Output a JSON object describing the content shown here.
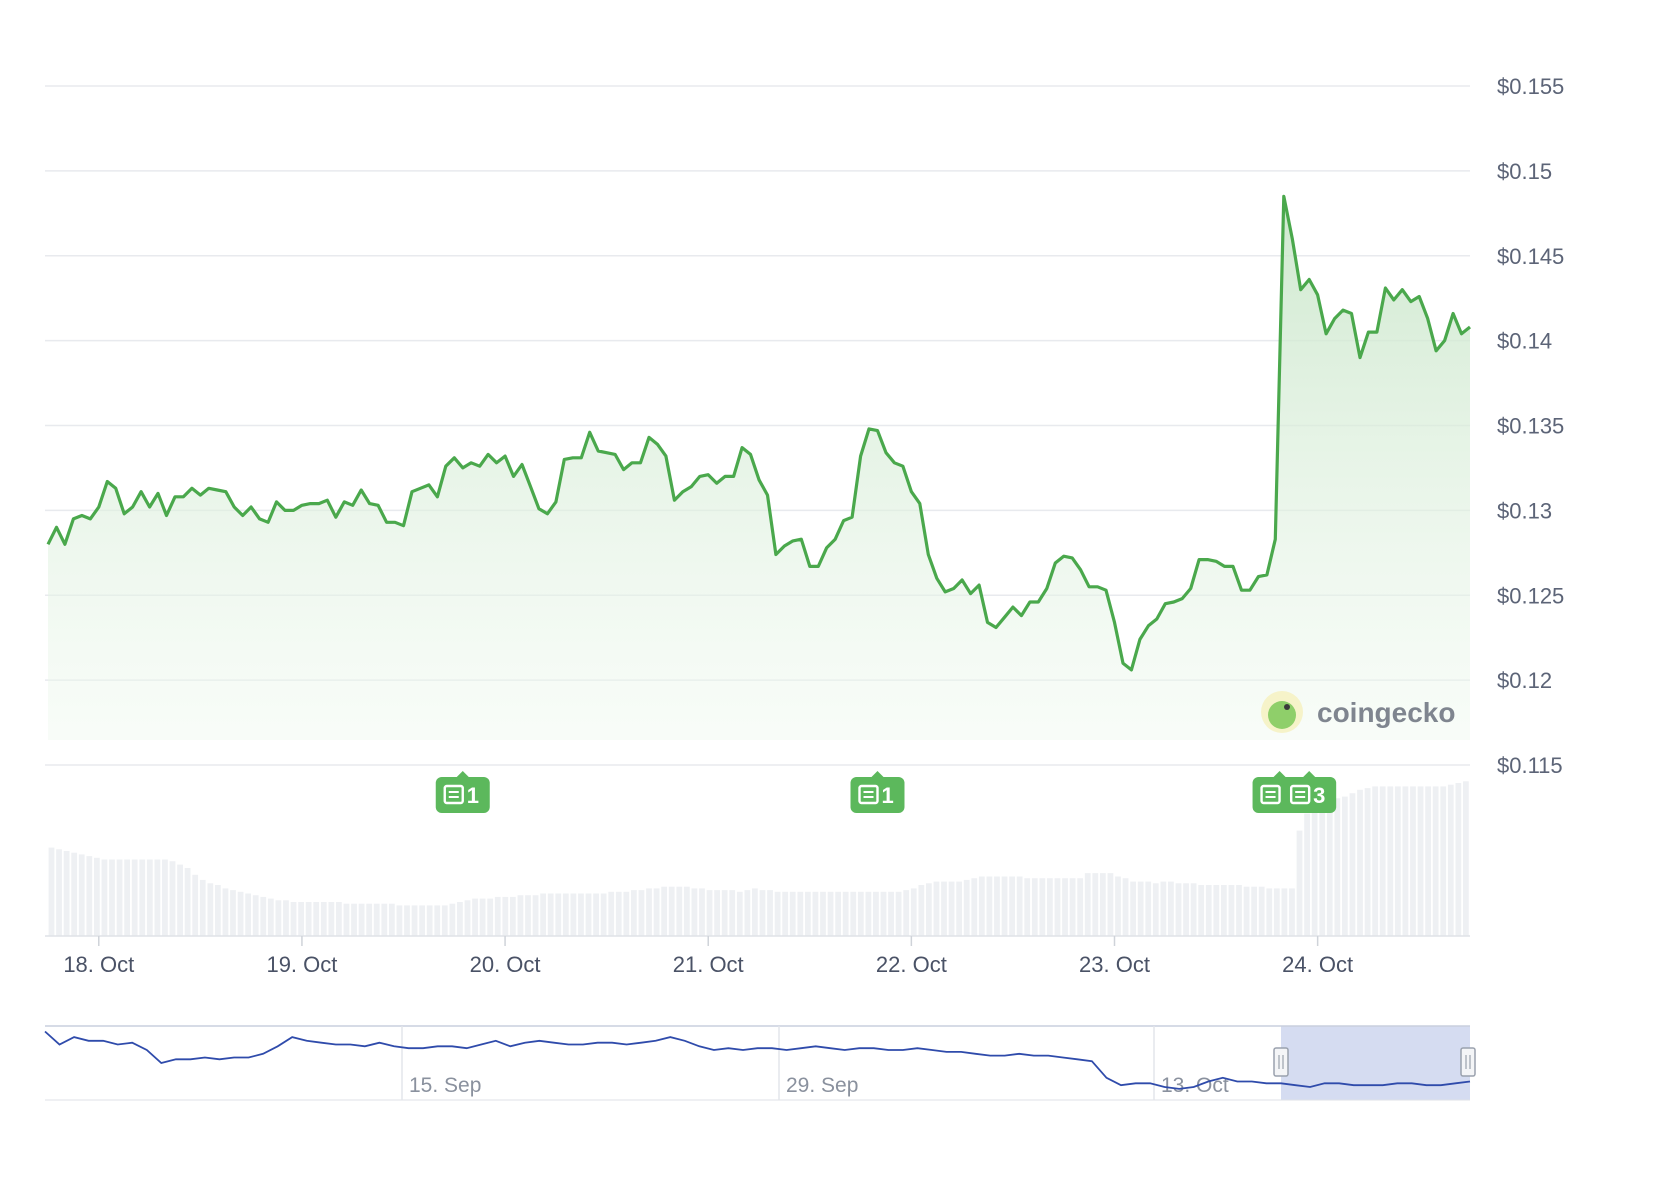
{
  "chart_data": {
    "type": "area",
    "series": [
      {
        "values": [
          0.128,
          0.129,
          0.128,
          0.1295,
          0.1297,
          0.1295,
          0.1302,
          0.1317,
          0.1313,
          0.1298,
          0.1302,
          0.1311,
          0.1302,
          0.131,
          0.1297,
          0.1308,
          0.1308,
          0.1313,
          0.1309,
          0.1313,
          0.1312,
          0.1311,
          0.1302,
          0.1297,
          0.1302,
          0.1295,
          0.1293,
          0.1305,
          0.13,
          0.13,
          0.1303,
          0.1304,
          0.1304,
          0.1306,
          0.1296,
          0.1305,
          0.1303,
          0.1312,
          0.1304,
          0.1303,
          0.1293,
          0.1293,
          0.1291,
          0.1311,
          0.1313,
          0.1315,
          0.1308,
          0.1326,
          0.1331,
          0.1325,
          0.1328,
          0.1326,
          0.1333,
          0.1328,
          0.1332,
          0.132,
          0.1327,
          0.1314,
          0.1301,
          0.1298,
          0.1305,
          0.133,
          0.1331,
          0.1331,
          0.1346,
          0.1335,
          0.1334,
          0.1333,
          0.1324,
          0.1328,
          0.1328,
          0.1343,
          0.1339,
          0.1332,
          0.1306,
          0.1311,
          0.1314,
          0.132,
          0.1321,
          0.1316,
          0.132,
          0.132,
          0.1337,
          0.1333,
          0.1318,
          0.1309,
          0.1274,
          0.1279,
          0.1282,
          0.1283,
          0.1267,
          0.1267,
          0.1278,
          0.1283,
          0.1294,
          0.1296,
          0.1332,
          0.1348,
          0.1347,
          0.1334,
          0.1328,
          0.1326,
          0.1311,
          0.1304,
          0.1274,
          0.126,
          0.1252,
          0.1254,
          0.1259,
          0.1251,
          0.1256,
          0.1234,
          0.1231,
          0.1237,
          0.1243,
          0.1238,
          0.1246,
          0.1246,
          0.1254,
          0.1269,
          0.1273,
          0.1272,
          0.1265,
          0.1255,
          0.1255,
          0.1253,
          0.1234,
          0.121,
          0.1206,
          0.1224,
          0.1232,
          0.1236,
          0.1245,
          0.1246,
          0.1248,
          0.1254,
          0.1271,
          0.1271,
          0.127,
          0.1267,
          0.1267,
          0.1253,
          0.1253,
          0.1261,
          0.1262,
          0.1283,
          0.1485,
          0.146,
          0.143,
          0.1436,
          0.1427,
          0.1404,
          0.1413,
          0.1418,
          0.1416,
          0.139,
          0.1405,
          0.1405,
          0.1431,
          0.1424,
          0.143,
          0.1423,
          0.1426,
          0.1413,
          0.1394,
          0.14,
          0.1416,
          0.1404,
          0.1408
        ]
      }
    ],
    "x_range": [
      "2023-10-17T18:00",
      "2023-10-24T18:00"
    ],
    "x_ticks": [
      "18. Oct",
      "19. Oct",
      "20. Oct",
      "21. Oct",
      "22. Oct",
      "23. Oct",
      "24. Oct"
    ],
    "y_ticks": [
      "$0.115",
      "$0.12",
      "$0.125",
      "$0.13",
      "$0.135",
      "$0.14",
      "$0.145",
      "$0.15",
      "$0.155"
    ],
    "ylim": [
      0.115,
      0.155
    ],
    "grid": true,
    "line_color": "#4aa84c",
    "fill_color": "#d4ecd4",
    "volume_color": "#eef0f3",
    "volume": [
      0.52,
      0.51,
      0.5,
      0.49,
      0.48,
      0.47,
      0.46,
      0.45,
      0.45,
      0.45,
      0.45,
      0.45,
      0.45,
      0.45,
      0.45,
      0.45,
      0.44,
      0.42,
      0.4,
      0.36,
      0.33,
      0.31,
      0.3,
      0.28,
      0.27,
      0.26,
      0.25,
      0.24,
      0.23,
      0.22,
      0.21,
      0.21,
      0.2,
      0.2,
      0.2,
      0.2,
      0.2,
      0.2,
      0.2,
      0.19,
      0.19,
      0.19,
      0.19,
      0.19,
      0.19,
      0.19,
      0.18,
      0.18,
      0.18,
      0.18,
      0.18,
      0.18,
      0.18,
      0.19,
      0.2,
      0.21,
      0.22,
      0.22,
      0.22,
      0.23,
      0.23,
      0.23,
      0.24,
      0.24,
      0.24,
      0.25,
      0.25,
      0.25,
      0.25,
      0.25,
      0.25,
      0.25,
      0.25,
      0.25,
      0.26,
      0.26,
      0.26,
      0.27,
      0.27,
      0.28,
      0.28,
      0.29,
      0.29,
      0.29,
      0.29,
      0.28,
      0.28,
      0.27,
      0.27,
      0.27,
      0.27,
      0.26,
      0.27,
      0.28,
      0.27,
      0.27,
      0.26,
      0.26,
      0.26,
      0.26,
      0.26,
      0.26,
      0.26,
      0.26,
      0.26,
      0.26,
      0.26,
      0.26,
      0.26,
      0.26,
      0.26,
      0.26,
      0.26,
      0.27,
      0.28,
      0.3,
      0.31,
      0.32,
      0.32,
      0.32,
      0.32,
      0.33,
      0.34,
      0.35,
      0.35,
      0.35,
      0.35,
      0.35,
      0.35,
      0.34,
      0.34,
      0.34,
      0.34,
      0.34,
      0.34,
      0.34,
      0.34,
      0.37,
      0.37,
      0.37,
      0.37,
      0.35,
      0.34,
      0.32,
      0.32,
      0.32,
      0.31,
      0.32,
      0.32,
      0.31,
      0.31,
      0.31,
      0.3,
      0.3,
      0.3,
      0.3,
      0.3,
      0.3,
      0.29,
      0.29,
      0.29,
      0.28,
      0.28,
      0.28,
      0.28,
      0.62,
      0.72,
      0.76,
      0.78,
      0.8,
      0.81,
      0.82,
      0.84,
      0.86,
      0.87,
      0.88,
      0.88,
      0.88,
      0.88,
      0.88,
      0.88,
      0.88,
      0.88,
      0.88,
      0.88,
      0.89,
      0.9,
      0.91
    ],
    "news": [
      {
        "x": "2023-10-19T19:00",
        "count": "1"
      },
      {
        "x": "2023-10-21T20:00",
        "count": "1"
      },
      {
        "x": "2023-10-23T19:30",
        "count": "1"
      },
      {
        "x": "2023-10-23T23:00",
        "count": "3"
      }
    ],
    "navigator": {
      "x_ticks": [
        "15. Sep",
        "29. Sep",
        "13. Oct"
      ],
      "color": "#2f4bab",
      "selection_color": "#ced6ee",
      "values": [
        0.155,
        0.148,
        0.152,
        0.15,
        0.15,
        0.148,
        0.149,
        0.145,
        0.138,
        0.14,
        0.14,
        0.141,
        0.14,
        0.141,
        0.141,
        0.143,
        0.147,
        0.152,
        0.15,
        0.149,
        0.148,
        0.148,
        0.147,
        0.149,
        0.147,
        0.146,
        0.146,
        0.147,
        0.147,
        0.146,
        0.148,
        0.15,
        0.147,
        0.149,
        0.15,
        0.149,
        0.148,
        0.148,
        0.149,
        0.149,
        0.148,
        0.149,
        0.15,
        0.152,
        0.15,
        0.147,
        0.145,
        0.146,
        0.145,
        0.146,
        0.146,
        0.145,
        0.146,
        0.147,
        0.146,
        0.145,
        0.146,
        0.146,
        0.145,
        0.145,
        0.146,
        0.145,
        0.144,
        0.144,
        0.143,
        0.142,
        0.142,
        0.143,
        0.142,
        0.142,
        0.141,
        0.14,
        0.139,
        0.13,
        0.126,
        0.127,
        0.127,
        0.125,
        0.124,
        0.125,
        0.128,
        0.13,
        0.128,
        0.128,
        0.127,
        0.127,
        0.126,
        0.125,
        0.127,
        0.127,
        0.126,
        0.126,
        0.126,
        0.127,
        0.127,
        0.126,
        0.126,
        0.127,
        0.128
      ],
      "selection": [
        "2023-10-17T18:00",
        "2023-10-24T18:00"
      ]
    },
    "brand": "coingecko"
  }
}
